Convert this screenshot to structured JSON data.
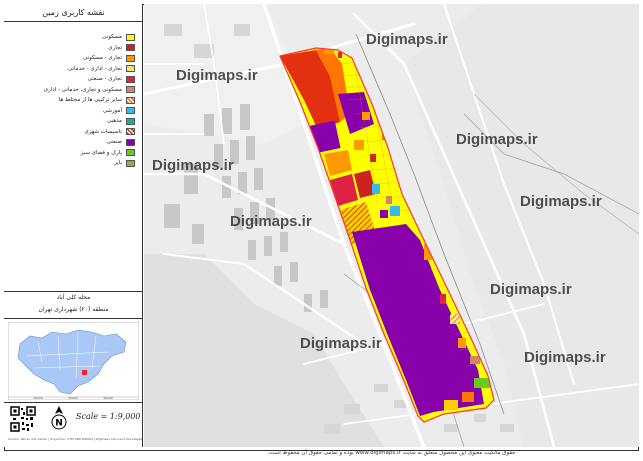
{
  "legend": {
    "title": "نقشه کاربری زمین",
    "items": [
      {
        "label": "مسکونی",
        "color": "#ffff00",
        "pattern": "solid"
      },
      {
        "label": "تجاری",
        "color": "#cc2222",
        "pattern": "solid"
      },
      {
        "label": "تجاری - مسکونی",
        "color": "#ff9900",
        "pattern": "solid"
      },
      {
        "label": "تجاری - اداری - خدماتی",
        "color": "#ffcc00",
        "pattern": "hatch"
      },
      {
        "label": "تجاری - صنعتی",
        "color": "#dd2244",
        "pattern": "solid"
      },
      {
        "label": "مسکونی و تجاری، خدماتی - اداری",
        "color": "#cc8866",
        "pattern": "solid"
      },
      {
        "label": "سایر ترکیبی ها از مختلط ها",
        "color": "#dd7722",
        "pattern": "hatch"
      },
      {
        "label": "آموزشی",
        "color": "#33bbee",
        "pattern": "solid"
      },
      {
        "label": "مذهبی",
        "color": "#22aa99",
        "pattern": "solid"
      },
      {
        "label": "تاسیسات شهری",
        "color": "#cc3300",
        "pattern": "hatch"
      },
      {
        "label": "صنعتی",
        "color": "#8800aa",
        "pattern": "solid"
      },
      {
        "label": "پارک و فضای سبز",
        "color": "#66cc22",
        "pattern": "solid"
      },
      {
        "label": "بایر",
        "color": "#99aa44",
        "pattern": "solid"
      }
    ]
  },
  "area": {
    "name": "محله کلی آباد",
    "district": "منطقه (۲۰) شهرداری تهران"
  },
  "inset": {
    "tick_labels": [
      "10000",
      "20000",
      "30000"
    ]
  },
  "scale": {
    "text": "Scale = 1:9,000"
  },
  "north": {
    "letter": "N"
  },
  "footer_left": "Source: Tehran GIS Center | Projection: UTM 39N WGS84 | Digimaps Iran Land Use Mapping Series",
  "copyright": "حقوق مالکیت معنوی این محصول متعلق به سایت www.digimaps.ir بوده و تمامی حقوق آن محفوظ است.",
  "watermark": "Digimaps.ir",
  "colors": {
    "boundary": "#ff3333",
    "road": "#ffffff",
    "railway": "#555555"
  }
}
